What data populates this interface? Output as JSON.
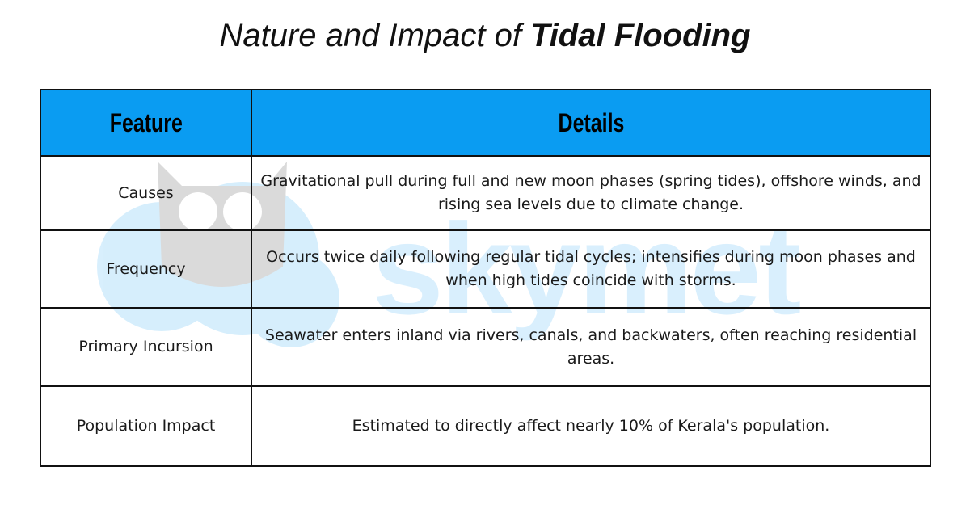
{
  "header": {
    "title_regular": "Nature and Impact of",
    "title_bold": "Tidal Flooding"
  },
  "watermark": "skymet",
  "table": {
    "columns": [
      "Feature",
      "Details"
    ],
    "rows": [
      [
        "Causes",
        "Gravitational pull during full and new moon phases (spring tides), offshore winds, and rising sea levels due to climate change."
      ],
      [
        "Frequency",
        "Occurs twice daily following regular tidal cycles; intensifies during moon phases and when high tides coincide with storms."
      ],
      [
        "Primary Incursion",
        "Seawater enters inland via rivers, canals, and backwaters, often reaching residential areas."
      ],
      [
        "Population Impact",
        "Estimated to directly affect nearly 10% of Kerala's population."
      ]
    ]
  }
}
